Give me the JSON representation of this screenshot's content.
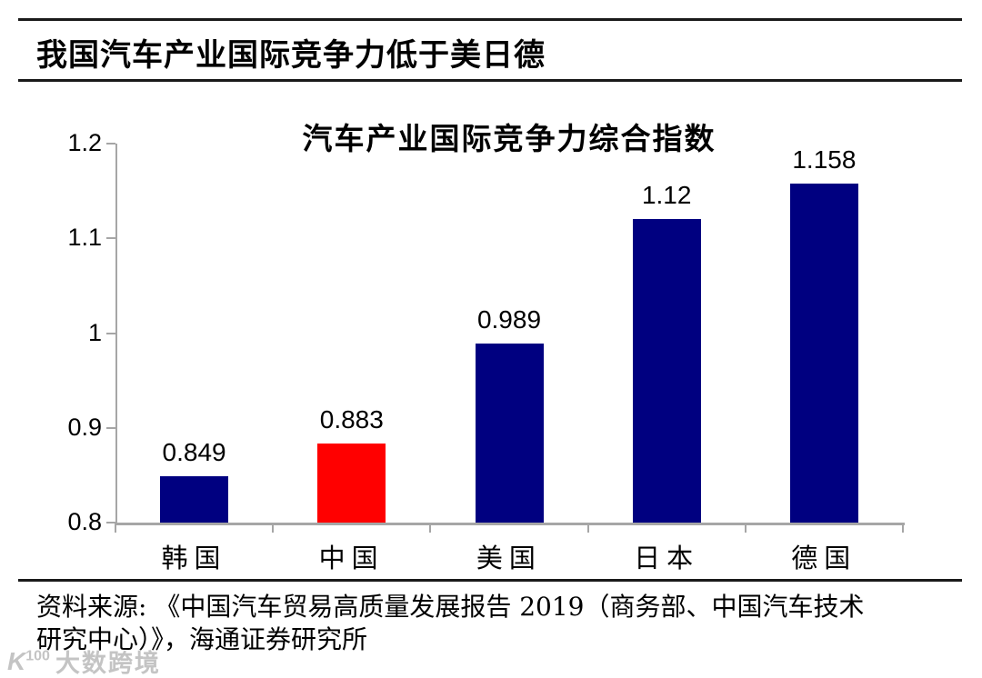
{
  "header": {
    "title": "我国汽车产业国际竞争力低于美日德"
  },
  "chart_data": {
    "type": "bar",
    "title": "汽车产业国际竞争力综合指数",
    "categories": [
      "韩国",
      "中国",
      "美国",
      "日本",
      "德国"
    ],
    "values": [
      0.849,
      0.883,
      0.989,
      1.12,
      1.158
    ],
    "value_labels": [
      "0.849",
      "0.883",
      "0.989",
      "1.12",
      "1.158"
    ],
    "bar_colors": [
      "#000080",
      "#ff0000",
      "#000080",
      "#000080",
      "#000080"
    ],
    "highlight_category": "中国",
    "xlabel": "",
    "ylabel": "",
    "ylim": [
      0.8,
      1.2
    ],
    "yticks": [
      "0.8",
      "0.9",
      "1",
      "1.1",
      "1.2"
    ],
    "grid": false,
    "legend": "none",
    "axis_color": "#a6a6a6",
    "navy_hex": "#000080",
    "red_hex": "#ff0000"
  },
  "footer": {
    "source_line1": "资料来源: 《中国汽车贸易高质量发展报告 2019（商务部、中国汽车技术",
    "source_line2": "研究中心）》，海通证券研究所"
  },
  "watermark": {
    "logo": "K",
    "logo_sup": "100",
    "text": "大数跨境"
  }
}
